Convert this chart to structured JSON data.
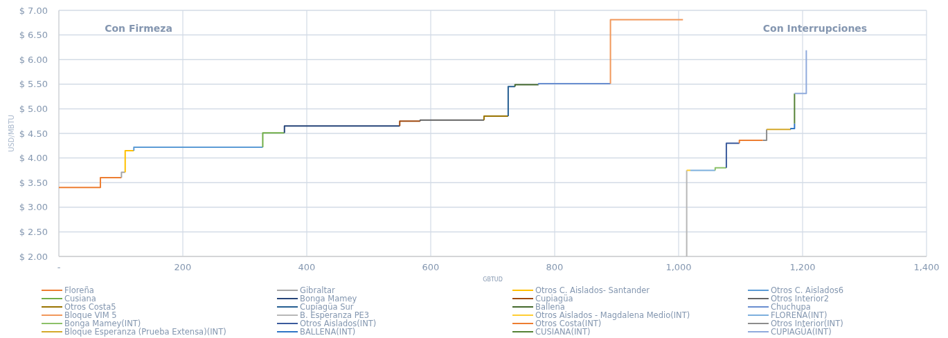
{
  "chart_data": {
    "type": "line",
    "xlabel": "GBTUD",
    "ylabel": "USD/MBTU",
    "annotations": [
      "Con Firmeza",
      "Con Interrupciones"
    ],
    "xlim": [
      0,
      1400
    ],
    "xticks": [
      {
        "value": 0,
        "label": "-"
      },
      200,
      400,
      600,
      800,
      {
        "value": 1000,
        "label": "1,000"
      },
      {
        "value": 1200,
        "label": "1,200"
      },
      {
        "value": 1400,
        "label": "1,400"
      }
    ],
    "ylim": [
      2,
      7
    ],
    "yticks": [
      {
        "value": 2,
        "label": "$ 2.00"
      },
      {
        "value": 2.5,
        "label": "$ 2.50"
      },
      {
        "value": 3,
        "label": "$ 3.00"
      },
      {
        "value": 3.5,
        "label": "$ 3.50"
      },
      {
        "value": 4,
        "label": "$ 4.00"
      },
      {
        "value": 4.5,
        "label": "$ 4.50"
      },
      {
        "value": 5,
        "label": "$ 5.00"
      },
      {
        "value": 5.5,
        "label": "$ 5.50"
      },
      {
        "value": 6,
        "label": "$ 6.00"
      },
      {
        "value": 6.5,
        "label": "$ 6.50"
      },
      {
        "value": 7,
        "label": "$ 7.00"
      }
    ],
    "grid": true,
    "legend": "bottom",
    "marker": "none",
    "line_style": "solid",
    "series": [
      {
        "name": "Floreña",
        "color": "#ed7d31",
        "x": [
          0,
          67,
          67,
          101
        ],
        "values": [
          3.4,
          3.4,
          3.6,
          3.6
        ]
      },
      {
        "name": "Gibraltar",
        "color": "#a5a5a5",
        "x": [
          101,
          101,
          107
        ],
        "values": [
          3.6,
          3.71,
          3.71
        ]
      },
      {
        "name": "Otros C. Aislados- Santander",
        "color": "#ffc000",
        "x": [
          107,
          107,
          121
        ],
        "values": [
          3.71,
          4.15,
          4.15
        ]
      },
      {
        "name": "Otros C. Aislados6",
        "color": "#5b9bd5",
        "x": [
          121,
          121,
          329
        ],
        "values": [
          4.15,
          4.22,
          4.22
        ]
      },
      {
        "name": "Cusiana",
        "color": "#70ad47",
        "x": [
          329,
          329,
          364
        ],
        "values": [
          4.22,
          4.51,
          4.51
        ]
      },
      {
        "name": "Bonga Mamey",
        "color": "#264478",
        "x": [
          364,
          364,
          550
        ],
        "values": [
          4.51,
          4.65,
          4.65
        ]
      },
      {
        "name": "Cupiagüa",
        "color": "#9e480e",
        "x": [
          550,
          550,
          583
        ],
        "values": [
          4.65,
          4.75,
          4.75
        ]
      },
      {
        "name": "Otros Interior2",
        "color": "#636363",
        "x": [
          583,
          583,
          686
        ],
        "values": [
          4.75,
          4.77,
          4.77
        ]
      },
      {
        "name": "Otros Costa5",
        "color": "#997300",
        "x": [
          686,
          686,
          725
        ],
        "values": [
          4.77,
          4.85,
          4.85
        ]
      },
      {
        "name": "Cupiagüa Sur",
        "color": "#255e91",
        "x": [
          725,
          725,
          736
        ],
        "values": [
          4.85,
          5.45,
          5.45
        ]
      },
      {
        "name": "Ballena",
        "color": "#43682b",
        "x": [
          736,
          736,
          774
        ],
        "values": [
          5.45,
          5.49,
          5.49
        ]
      },
      {
        "name": "Chuchupa",
        "color": "#698ed0",
        "x": [
          774,
          774,
          890
        ],
        "values": [
          5.49,
          5.51,
          5.51
        ]
      },
      {
        "name": "Bloque VIM 5",
        "color": "#f1975a",
        "x": [
          890,
          890,
          1007
        ],
        "values": [
          5.51,
          6.81,
          6.81
        ]
      },
      {
        "name": "B. Esperanza PE3",
        "color": "#b7b7b7",
        "x": [
          1013,
          1013
        ],
        "values": [
          2.0,
          3.75
        ]
      },
      {
        "name": "Otros Aislados - Magdalena Medio(INT)",
        "color": "#ffcd33",
        "x": [
          1013,
          1019
        ],
        "values": [
          3.75,
          3.75
        ]
      },
      {
        "name": "FLOREÑA(INT)",
        "color": "#7cafdd",
        "x": [
          1019,
          1059
        ],
        "values": [
          3.75,
          3.75
        ]
      },
      {
        "name": "Bonga Mamey(INT)",
        "color": "#8cc168",
        "x": [
          1059,
          1059,
          1077
        ],
        "values": [
          3.75,
          3.8,
          3.8
        ]
      },
      {
        "name": "Otros Aislados(INT)",
        "color": "#3a5a9c",
        "x": [
          1077,
          1077,
          1098
        ],
        "values": [
          3.8,
          4.3,
          4.3
        ]
      },
      {
        "name": "Otros Costa(INT)",
        "color": "#ed7d31",
        "x": [
          1098,
          1098,
          1136
        ],
        "values": [
          4.3,
          4.36,
          4.36
        ]
      },
      {
        "name": "Otros Interior(INT)",
        "color": "#8c8c8c",
        "x": [
          1136,
          1142,
          1142
        ],
        "values": [
          4.36,
          4.36,
          4.58
        ]
      },
      {
        "name": "Bloque Esperanza (Prueba Extensa)(INT)",
        "color": "#d4a82a",
        "x": [
          1142,
          1181
        ],
        "values": [
          4.58,
          4.58
        ]
      },
      {
        "name": "BALLENA(INT)",
        "color": "#2e75c6",
        "x": [
          1181,
          1181,
          1187,
          1187
        ],
        "values": [
          4.58,
          4.6,
          4.6,
          4.7
        ]
      },
      {
        "name": "CUSIANA(INT)",
        "color": "#548235",
        "x": [
          1187,
          1187
        ],
        "values": [
          4.7,
          5.31
        ]
      },
      {
        "name": "CUPIAGÜA(INT)",
        "color": "#8faadc",
        "x": [
          1187,
          1206,
          1206
        ],
        "values": [
          5.31,
          5.31,
          6.19
        ]
      }
    ]
  }
}
